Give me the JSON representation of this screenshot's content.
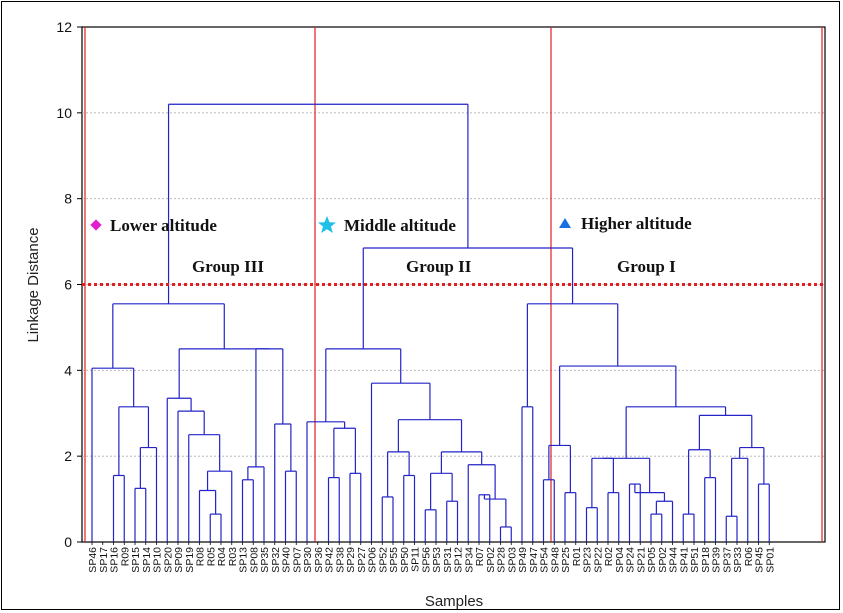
{
  "chart_data": {
    "type": "dendrogram",
    "xlabel": "Samples",
    "ylabel": "Linkage Distance",
    "ylim": [
      0,
      12
    ],
    "yticks": [
      0,
      2,
      4,
      6,
      8,
      10,
      12
    ],
    "cut_line": 6,
    "grid": true,
    "leaves": [
      "SP46",
      "SP17",
      "SP16",
      "R09",
      "SP15",
      "SP14",
      "SP10",
      "SP20",
      "SP09",
      "SP19",
      "R08",
      "R05",
      "R04",
      "R03",
      "SP13",
      "SP08",
      "SP35",
      "SP32",
      "SP40",
      "SP07",
      "SP30",
      "SP36",
      "SP42",
      "SP38",
      "SP29",
      "SP27",
      "SP06",
      "SP52",
      "SP55",
      "SP50",
      "SP11",
      "SP56",
      "SP53",
      "SP31",
      "SP12",
      "SP34",
      "R07",
      "SP02",
      "SP28",
      "SP03",
      "SP49",
      "SP47",
      "SP54",
      "SP48",
      "SP25",
      "R01",
      "SP23",
      "SP22",
      "R02",
      "SP04",
      "SP24",
      "SP21",
      "SP05",
      "SP02",
      "SP44",
      "SP41",
      "SP51",
      "SP18",
      "SP39",
      "SP37",
      "SP33",
      "R06",
      "SP45",
      "SP01"
    ],
    "merges": [
      [
        2,
        3,
        1.55
      ],
      [
        4,
        5,
        1.25
      ],
      [
        15,
        16,
        2.2
      ],
      [
        1,
        15,
        3.15
      ],
      [
        0,
        17,
        4.05
      ],
      [
        11,
        12,
        0.65
      ],
      [
        10,
        19,
        1.2
      ],
      [
        13,
        20,
        1.65
      ],
      [
        9,
        21,
        2.5
      ],
      [
        8,
        22,
        3.05
      ],
      [
        7,
        23,
        3.35
      ],
      [
        14,
        15,
        1.45
      ],
      [
        25,
        16,
        1.35
      ],
      [
        17,
        26,
        1.75
      ],
      [
        27,
        18,
        1.8
      ],
      [
        18,
        19,
        1.65
      ],
      [
        28,
        29,
        2.75
      ],
      [
        24,
        30,
        4.5
      ],
      [
        18,
        31,
        5.55
      ],
      [
        22,
        23,
        1.5
      ],
      [
        24,
        25,
        1.6
      ],
      [
        33,
        34,
        2.65
      ],
      [
        20,
        35,
        2.8
      ],
      [
        26,
        31,
        3.35
      ],
      [
        36,
        37,
        3.35
      ],
      [
        27,
        28,
        1.05
      ],
      [
        29,
        30,
        1.55
      ],
      [
        39,
        40,
        2.1
      ],
      [
        31,
        32,
        0.75
      ],
      [
        33,
        34,
        0.95
      ],
      [
        42,
        43,
        1.6
      ],
      [
        36,
        37,
        1.1
      ],
      [
        38,
        39,
        0.35
      ],
      [
        45,
        46,
        1.0
      ],
      [
        47,
        48,
        1.8
      ],
      [
        44,
        49,
        2.1
      ],
      [
        41,
        50,
        2.85
      ],
      [
        38,
        51,
        3.7
      ],
      [
        52,
        53,
        4.25
      ],
      [
        54,
        55,
        4.5
      ],
      [
        40,
        41,
        3.15
      ],
      [
        42,
        43,
        1.45
      ],
      [
        44,
        45,
        1.15
      ],
      [
        57,
        58,
        2.25
      ],
      [
        46,
        47,
        0.8
      ],
      [
        48,
        49,
        1.15
      ],
      [
        60,
        61,
        1.95
      ],
      [
        50,
        51,
        1.35
      ],
      [
        52,
        53,
        0.65
      ],
      [
        54,
        55,
        0.95
      ],
      [
        63,
        64,
        1.15
      ],
      [
        62,
        65,
        1.4
      ],
      [
        55,
        56,
        0.65
      ],
      [
        67,
        68,
        2.15
      ],
      [
        57,
        58,
        1.5
      ],
      [
        59,
        60,
        0.6
      ],
      [
        70,
        71,
        1.95
      ],
      [
        61,
        62,
        0.9
      ],
      [
        72,
        73,
        2.2
      ],
      [
        69,
        74,
        2.95
      ],
      [
        65,
        75,
        3.15
      ],
      [
        62,
        76,
        4.1
      ],
      [
        59,
        77,
        5.55
      ],
      [
        56,
        57,
        6.85
      ],
      [
        78,
        79,
        6.85
      ],
      [
        42,
        80,
        10.2
      ]
    ]
  },
  "annotations": {
    "lower": "Lower altitude",
    "middle": "Middle altitude",
    "higher": "Higher altitude",
    "group3": "Group III",
    "group2": "Group II",
    "group1": "Group I"
  },
  "colors": {
    "tree": "#2323c8",
    "divider": "#e02020",
    "cutline": "#e02020",
    "lower_marker": "#e020d0",
    "middle_marker": "#20c0e8",
    "higher_marker": "#1a6fe0"
  },
  "icons": {
    "lower": "diamond-icon",
    "middle": "star-icon",
    "higher": "triangle-icon"
  }
}
